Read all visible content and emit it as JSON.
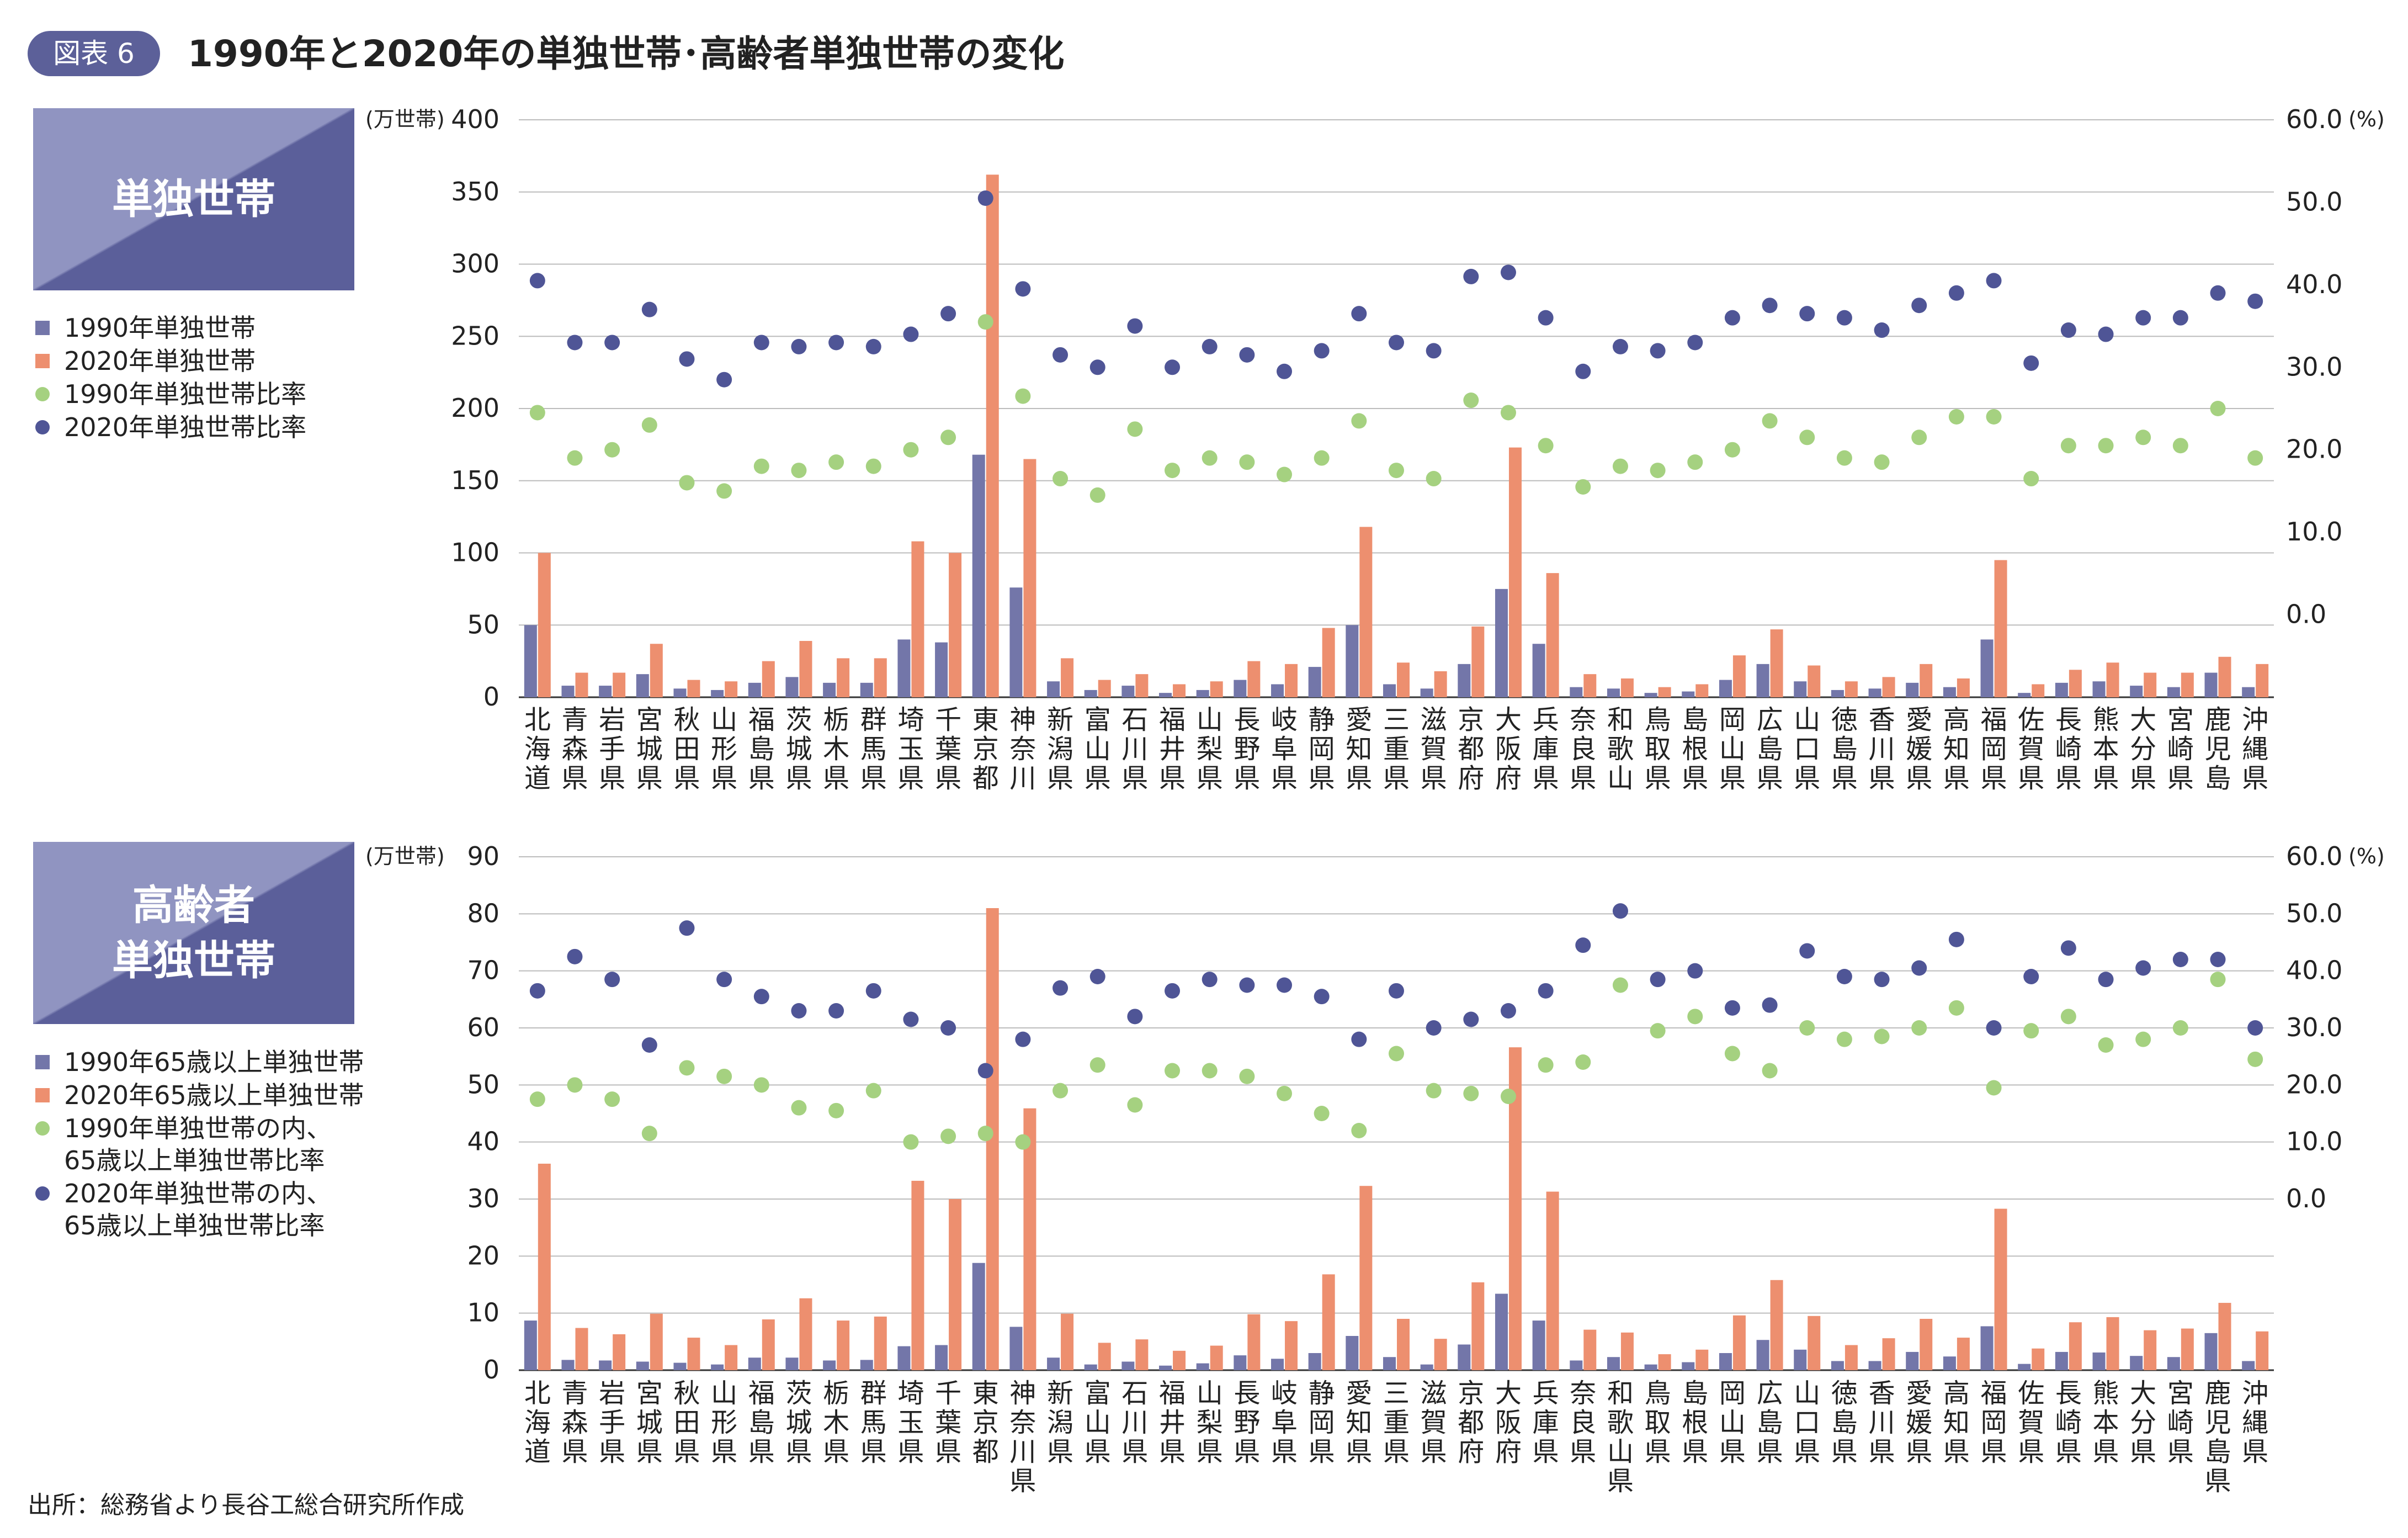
{
  "header": {
    "badge": "図表 6",
    "title": "1990年と2020年の単独世帯･高齢者単独世帯の変化"
  },
  "source": "出所：総務省より長谷工総合研究所作成",
  "colors": {
    "bar1990": "#7376a9",
    "bar2020": "#ed8f6f",
    "dot1990": "#a5d180",
    "dot2020": "#4f5596",
    "badge": "#5c6099"
  },
  "panels": [
    {
      "box_title": "単独世帯",
      "legend": [
        {
          "label": "1990年単独世帯",
          "shape": "square",
          "color": "#7376a9"
        },
        {
          "label": "2020年単独世帯",
          "shape": "square",
          "color": "#ed8f6f"
        },
        {
          "label": "1990年単独世帯比率",
          "shape": "circle",
          "color": "#a5d180"
        },
        {
          "label": "2020年単独世帯比率",
          "shape": "circle",
          "color": "#4f5596"
        }
      ]
    },
    {
      "box_title": "高齢者\n単独世帯",
      "legend": [
        {
          "label": "1990年65歳以上単独世帯",
          "shape": "square",
          "color": "#7376a9"
        },
        {
          "label": "2020年65歳以上単独世帯",
          "shape": "square",
          "color": "#ed8f6f"
        },
        {
          "label": "1990年単独世帯の内、\n65歳以上単独世帯比率",
          "shape": "circle",
          "color": "#a5d180"
        },
        {
          "label": "2020年単独世帯の内、\n65歳以上単独世帯比率",
          "shape": "circle",
          "color": "#4f5596"
        }
      ]
    }
  ],
  "chart_data": [
    {
      "type": "bar",
      "categories": [
        "北海道",
        "青森県",
        "岩手県",
        "宮城県",
        "秋田県",
        "山形県",
        "福島県",
        "茨城県",
        "栃木県",
        "群馬県",
        "埼玉県",
        "千葉県",
        "東京都",
        "神奈川県",
        "新潟県",
        "富山県",
        "石川県",
        "福井県",
        "山梨県",
        "長野県",
        "岐阜県",
        "静岡県",
        "愛知県",
        "三重県",
        "滋賀県",
        "京都府",
        "大阪府",
        "兵庫県",
        "奈良県",
        "和歌山県",
        "鳥取県",
        "島根県",
        "岡山県",
        "広島県",
        "山口県",
        "徳島県",
        "香川県",
        "愛媛県",
        "高知県",
        "福岡県",
        "佐賀県",
        "長崎県",
        "熊本県",
        "大分県",
        "宮崎県",
        "鹿児島県",
        "沖縄県"
      ],
      "left_axis": {
        "unit": "(万世帯)",
        "min": 0,
        "max": 400,
        "ticks": [
          0,
          50,
          100,
          150,
          200,
          250,
          300,
          350,
          400
        ]
      },
      "right_axis": {
        "unit": "(%)",
        "min": -10,
        "max": 60,
        "ticks": [
          0,
          10,
          20,
          30,
          40,
          50,
          60
        ],
        "tick_labels": [
          "0.0",
          "10.0",
          "20.0",
          "30.0",
          "40.0",
          "50.0",
          "60.0"
        ]
      },
      "series": [
        {
          "name": "1990年単独世帯",
          "kind": "bar",
          "axis": "left",
          "values": [
            50,
            8,
            8,
            16,
            6,
            5,
            10,
            14,
            10,
            10,
            40,
            38,
            168,
            76,
            11,
            5,
            8,
            3,
            5,
            12,
            9,
            21,
            50,
            9,
            6,
            23,
            75,
            37,
            7,
            6,
            3,
            4,
            12,
            23,
            11,
            5,
            6,
            10,
            7,
            40,
            3,
            10,
            11,
            8,
            7,
            17,
            7
          ]
        },
        {
          "name": "2020年単独世帯",
          "kind": "bar",
          "axis": "left",
          "values": [
            100,
            17,
            17,
            37,
            12,
            11,
            25,
            39,
            27,
            27,
            108,
            100,
            362,
            165,
            27,
            12,
            16,
            9,
            11,
            25,
            23,
            48,
            118,
            24,
            18,
            49,
            173,
            86,
            16,
            13,
            7,
            9,
            29,
            47,
            22,
            11,
            14,
            23,
            13,
            95,
            9,
            19,
            24,
            17,
            17,
            28,
            23
          ]
        },
        {
          "name": "1990年単独世帯比率",
          "kind": "dot",
          "axis": "right",
          "values": [
            24.5,
            19,
            20,
            23,
            16,
            15,
            18,
            17.5,
            18.5,
            18,
            20,
            21.5,
            35.5,
            26.5,
            16.5,
            14.5,
            22.5,
            17.5,
            19,
            18.5,
            17,
            19,
            23.5,
            17.5,
            16.5,
            26,
            24.5,
            20.5,
            15.5,
            18,
            17.5,
            18.5,
            20,
            23.5,
            21.5,
            19,
            18.5,
            21.5,
            24,
            24,
            16.5,
            20.5,
            20.5,
            21.5,
            20.5,
            25,
            19
          ]
        },
        {
          "name": "2020年単独世帯比率",
          "kind": "dot",
          "axis": "right",
          "values": [
            40.5,
            33,
            33,
            37,
            31,
            28.5,
            33,
            32.5,
            33,
            32.5,
            34,
            36.5,
            50.5,
            39.5,
            31.5,
            30,
            35,
            30,
            32.5,
            31.5,
            29.5,
            32,
            36.5,
            33,
            32,
            41,
            41.5,
            36,
            29.5,
            32.5,
            32,
            33,
            36,
            37.5,
            36.5,
            36,
            34.5,
            37.5,
            39,
            40.5,
            30.5,
            34.5,
            34,
            36,
            36,
            39,
            38
          ]
        }
      ]
    },
    {
      "type": "bar",
      "categories": [
        "北海道",
        "青森県",
        "岩手県",
        "宮城県",
        "秋田県",
        "山形県",
        "福島県",
        "茨城県",
        "栃木県",
        "群馬県",
        "埼玉県",
        "千葉県",
        "東京都",
        "神奈川県",
        "新潟県",
        "富山県",
        "石川県",
        "福井県",
        "山梨県",
        "長野県",
        "岐阜県",
        "静岡県",
        "愛知県",
        "三重県",
        "滋賀県",
        "京都府",
        "大阪府",
        "兵庫県",
        "奈良県",
        "和歌山県",
        "鳥取県",
        "島根県",
        "岡山県",
        "広島県",
        "山口県",
        "徳島県",
        "香川県",
        "愛媛県",
        "高知県",
        "福岡県",
        "佐賀県",
        "長崎県",
        "熊本県",
        "大分県",
        "宮崎県",
        "鹿児島県",
        "沖縄県"
      ],
      "left_axis": {
        "unit": "(万世帯)",
        "min": 0,
        "max": 90,
        "ticks": [
          0,
          10,
          20,
          30,
          40,
          50,
          60,
          70,
          80,
          90
        ]
      },
      "right_axis": {
        "unit": "(%)",
        "min": -30,
        "max": 60,
        "ticks": [
          0,
          10,
          20,
          30,
          40,
          50,
          60
        ],
        "tick_labels": [
          "0.0",
          "10.0",
          "20.0",
          "30.0",
          "40.0",
          "50.0",
          "60.0"
        ]
      },
      "series": [
        {
          "name": "1990年65歳以上単独世帯",
          "kind": "bar",
          "axis": "left",
          "values": [
            8.7,
            1.8,
            1.7,
            1.5,
            1.3,
            1.0,
            2.2,
            2.2,
            1.7,
            1.8,
            4.2,
            4.4,
            18.8,
            7.6,
            2.2,
            1.0,
            1.5,
            0.8,
            1.2,
            2.6,
            2.0,
            3.0,
            6.0,
            2.3,
            1.0,
            4.5,
            13.4,
            8.7,
            1.7,
            2.3,
            1.0,
            1.4,
            3.0,
            5.3,
            3.6,
            1.6,
            1.6,
            3.2,
            2.4,
            7.7,
            1.1,
            3.2,
            3.1,
            2.5,
            2.3,
            6.5,
            1.6
          ]
        },
        {
          "name": "2020年65歳以上単独世帯",
          "kind": "bar",
          "axis": "left",
          "values": [
            36.2,
            7.4,
            6.3,
            9.9,
            5.7,
            4.4,
            8.9,
            12.6,
            8.7,
            9.4,
            33.2,
            30.0,
            81.0,
            45.9,
            9.9,
            4.8,
            5.4,
            3.4,
            4.3,
            9.8,
            8.6,
            16.8,
            32.3,
            9.0,
            5.5,
            15.4,
            56.6,
            31.3,
            7.1,
            6.6,
            2.8,
            3.6,
            9.6,
            15.8,
            9.5,
            4.4,
            5.6,
            9.0,
            5.7,
            28.3,
            3.8,
            8.4,
            9.3,
            7.0,
            7.3,
            11.8,
            6.8
          ]
        },
        {
          "name": "1990年単独世帯の内、65歳以上単独世帯比率",
          "kind": "dot",
          "axis": "right",
          "values": [
            17.5,
            20,
            17.5,
            11.5,
            23,
            21.5,
            20,
            16,
            15.5,
            19,
            10,
            11,
            11.5,
            10,
            19,
            23.5,
            16.5,
            22.5,
            22.5,
            21.5,
            18.5,
            15,
            12,
            25.5,
            19,
            18.5,
            18,
            23.5,
            24,
            37.5,
            29.5,
            32,
            25.5,
            22.5,
            30,
            28,
            28.5,
            30,
            33.5,
            19.5,
            29.5,
            32,
            27,
            28,
            30,
            38.5,
            24.5
          ]
        },
        {
          "name": "2020年単独世帯の内、65歳以上単独世帯比率",
          "kind": "dot",
          "axis": "right",
          "values": [
            36.5,
            42.5,
            38.5,
            27,
            47.5,
            38.5,
            35.5,
            33,
            33,
            36.5,
            31.5,
            30,
            22.5,
            28,
            37,
            39,
            32,
            36.5,
            38.5,
            37.5,
            37.5,
            35.5,
            28,
            36.5,
            30,
            31.5,
            33,
            36.5,
            44.5,
            50.5,
            38.5,
            40,
            33.5,
            34,
            43.5,
            39,
            38.5,
            40.5,
            45.5,
            30,
            39,
            44,
            38.5,
            40.5,
            42,
            42,
            30
          ]
        }
      ]
    }
  ]
}
